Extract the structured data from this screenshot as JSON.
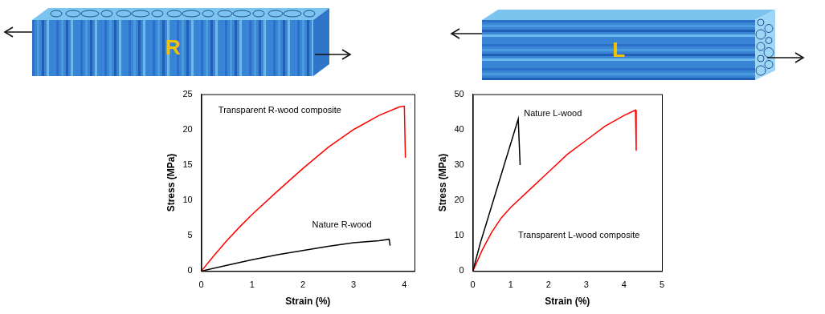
{
  "illustrations": [
    {
      "label": "R"
    },
    {
      "label": "L"
    }
  ],
  "chart_data": [
    {
      "type": "line",
      "xlabel": "Strain (%)",
      "ylabel": "Stress (MPa)",
      "xlim": [
        0,
        4.2
      ],
      "xticks": [
        0,
        1,
        2,
        3,
        4
      ],
      "ylim": [
        0,
        25
      ],
      "yticks": [
        0,
        5,
        10,
        15,
        20,
        25
      ],
      "grid": false,
      "series": [
        {
          "name": "Transparent R-wood composite",
          "color": "#ff0000",
          "x": [
            0,
            0.25,
            0.5,
            0.75,
            1,
            1.5,
            2,
            2.5,
            3,
            3.5,
            3.9,
            4.0,
            4.02
          ],
          "values": [
            0,
            2.2,
            4.3,
            6.2,
            8,
            11.3,
            14.5,
            17.5,
            20,
            22,
            23.2,
            23.3,
            16
          ]
        },
        {
          "name": "Nature R-wood",
          "color": "#000000",
          "x": [
            0,
            0.5,
            1,
            1.5,
            2,
            2.5,
            3,
            3.5,
            3.7,
            3.72
          ],
          "values": [
            0,
            0.8,
            1.6,
            2.3,
            2.9,
            3.5,
            4,
            4.3,
            4.5,
            3.6
          ]
        }
      ]
    },
    {
      "type": "line",
      "xlabel": "Strain (%)",
      "ylabel": "Stress (MPa)",
      "xlim": [
        0,
        5
      ],
      "xticks": [
        0,
        1,
        2,
        3,
        4,
        5
      ],
      "ylim": [
        0,
        50
      ],
      "yticks": [
        0,
        10,
        20,
        30,
        40,
        50
      ],
      "grid": false,
      "series": [
        {
          "name": "Nature L-wood",
          "color": "#000000",
          "x": [
            0,
            0.2,
            0.4,
            0.6,
            0.8,
            1,
            1.2,
            1.25
          ],
          "values": [
            0,
            8,
            15,
            22,
            29,
            36,
            43,
            30
          ]
        },
        {
          "name": "Transparent L-wood composite",
          "color": "#ff0000",
          "x": [
            0,
            0.25,
            0.5,
            0.75,
            1,
            1.5,
            2,
            2.5,
            3,
            3.5,
            4,
            4.3,
            4.32
          ],
          "values": [
            0,
            6,
            11,
            15,
            18,
            23,
            28,
            33,
            37,
            41,
            44,
            45.5,
            34
          ]
        }
      ]
    }
  ]
}
